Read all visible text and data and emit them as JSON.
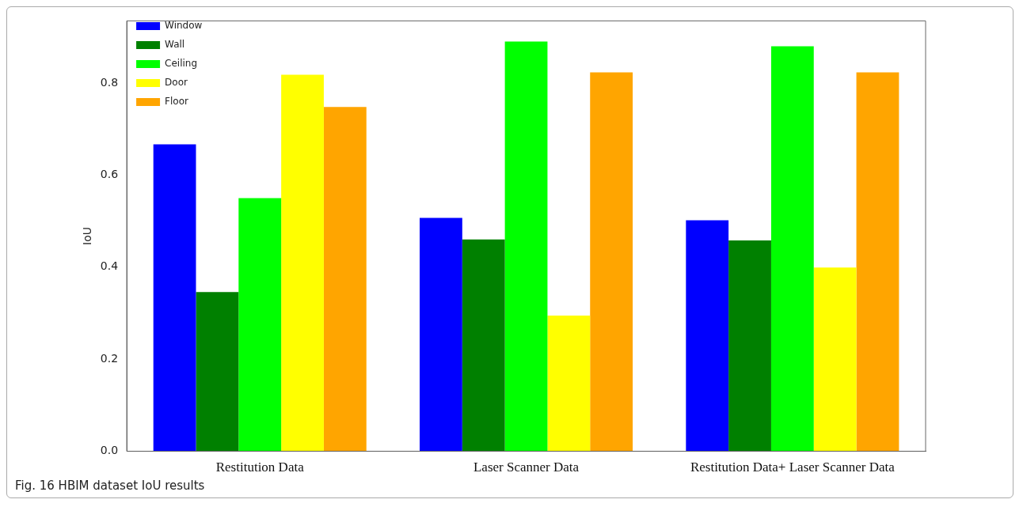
{
  "chart_data": {
    "type": "bar",
    "ylabel": "IoU",
    "annotations": [
      "Fig. 16 HBIM dataset IoU results"
    ],
    "categories": [
      "Restitution Data",
      "Laser Scanner Data",
      "Restitution Data+ Laser Scanner Data"
    ],
    "series": [
      {
        "name": "Window",
        "color": "#0000ff",
        "values": [
          0.667,
          0.507,
          0.502
        ]
      },
      {
        "name": "Wall",
        "color": "#008000",
        "values": [
          0.346,
          0.46,
          0.458
        ]
      },
      {
        "name": "Ceiling",
        "color": "#00ff00",
        "values": [
          0.55,
          0.89,
          0.88
        ]
      },
      {
        "name": "Door",
        "color": "#ffff00",
        "values": [
          0.818,
          0.295,
          0.399
        ]
      },
      {
        "name": "Floor",
        "color": "#ffa500",
        "values": [
          0.748,
          0.823,
          0.823
        ]
      }
    ],
    "ylim": [
      0,
      0.935
    ],
    "yticks": [
      {
        "value": 0,
        "label": "0.0"
      },
      0.2,
      0.4,
      0.6,
      0.8
    ],
    "grid": false,
    "legend": "top left"
  }
}
